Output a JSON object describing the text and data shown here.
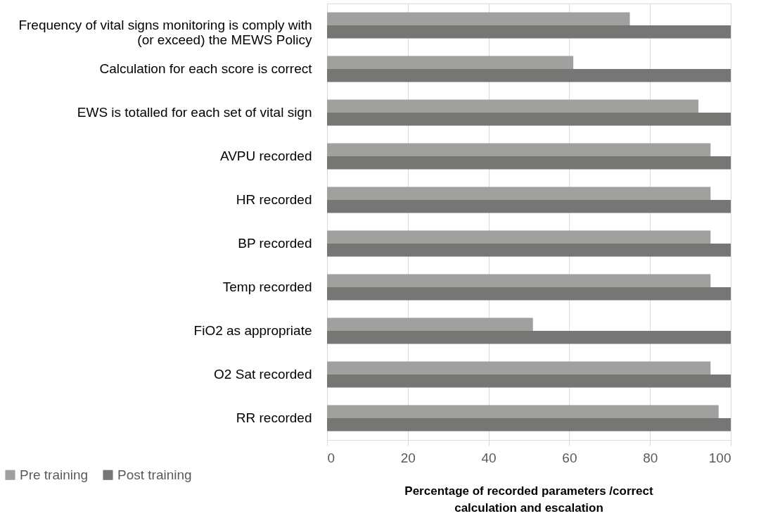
{
  "chart_data": {
    "type": "bar",
    "orientation": "horizontal",
    "xlabel": "Percentage of recorded parameters /correct calculation and escalation",
    "categories": [
      "Frequency of vital signs monitoring is comply with (or exceed) the MEWS Policy",
      "Calculation for each score is correct",
      "EWS is totalled for each set of vital sign",
      "AVPU recorded",
      "HR recorded",
      "BP recorded",
      "Temp  recorded",
      "FiO2 as appropriate",
      "O2 Sat recorded",
      "RR recorded"
    ],
    "series": [
      {
        "name": "Pre training",
        "color": "#a0a09f",
        "values": [
          75,
          61,
          92,
          95,
          95,
          95,
          95,
          51,
          95,
          97
        ]
      },
      {
        "name": "Post training",
        "color": "#767674",
        "values": [
          100,
          100,
          100,
          100,
          100,
          100,
          100,
          100,
          100,
          100
        ]
      }
    ],
    "xlim": [
      0,
      100
    ],
    "xticks": [
      0,
      20,
      40,
      60,
      80,
      100
    ],
    "grid": "x",
    "legend": "bottom left"
  }
}
